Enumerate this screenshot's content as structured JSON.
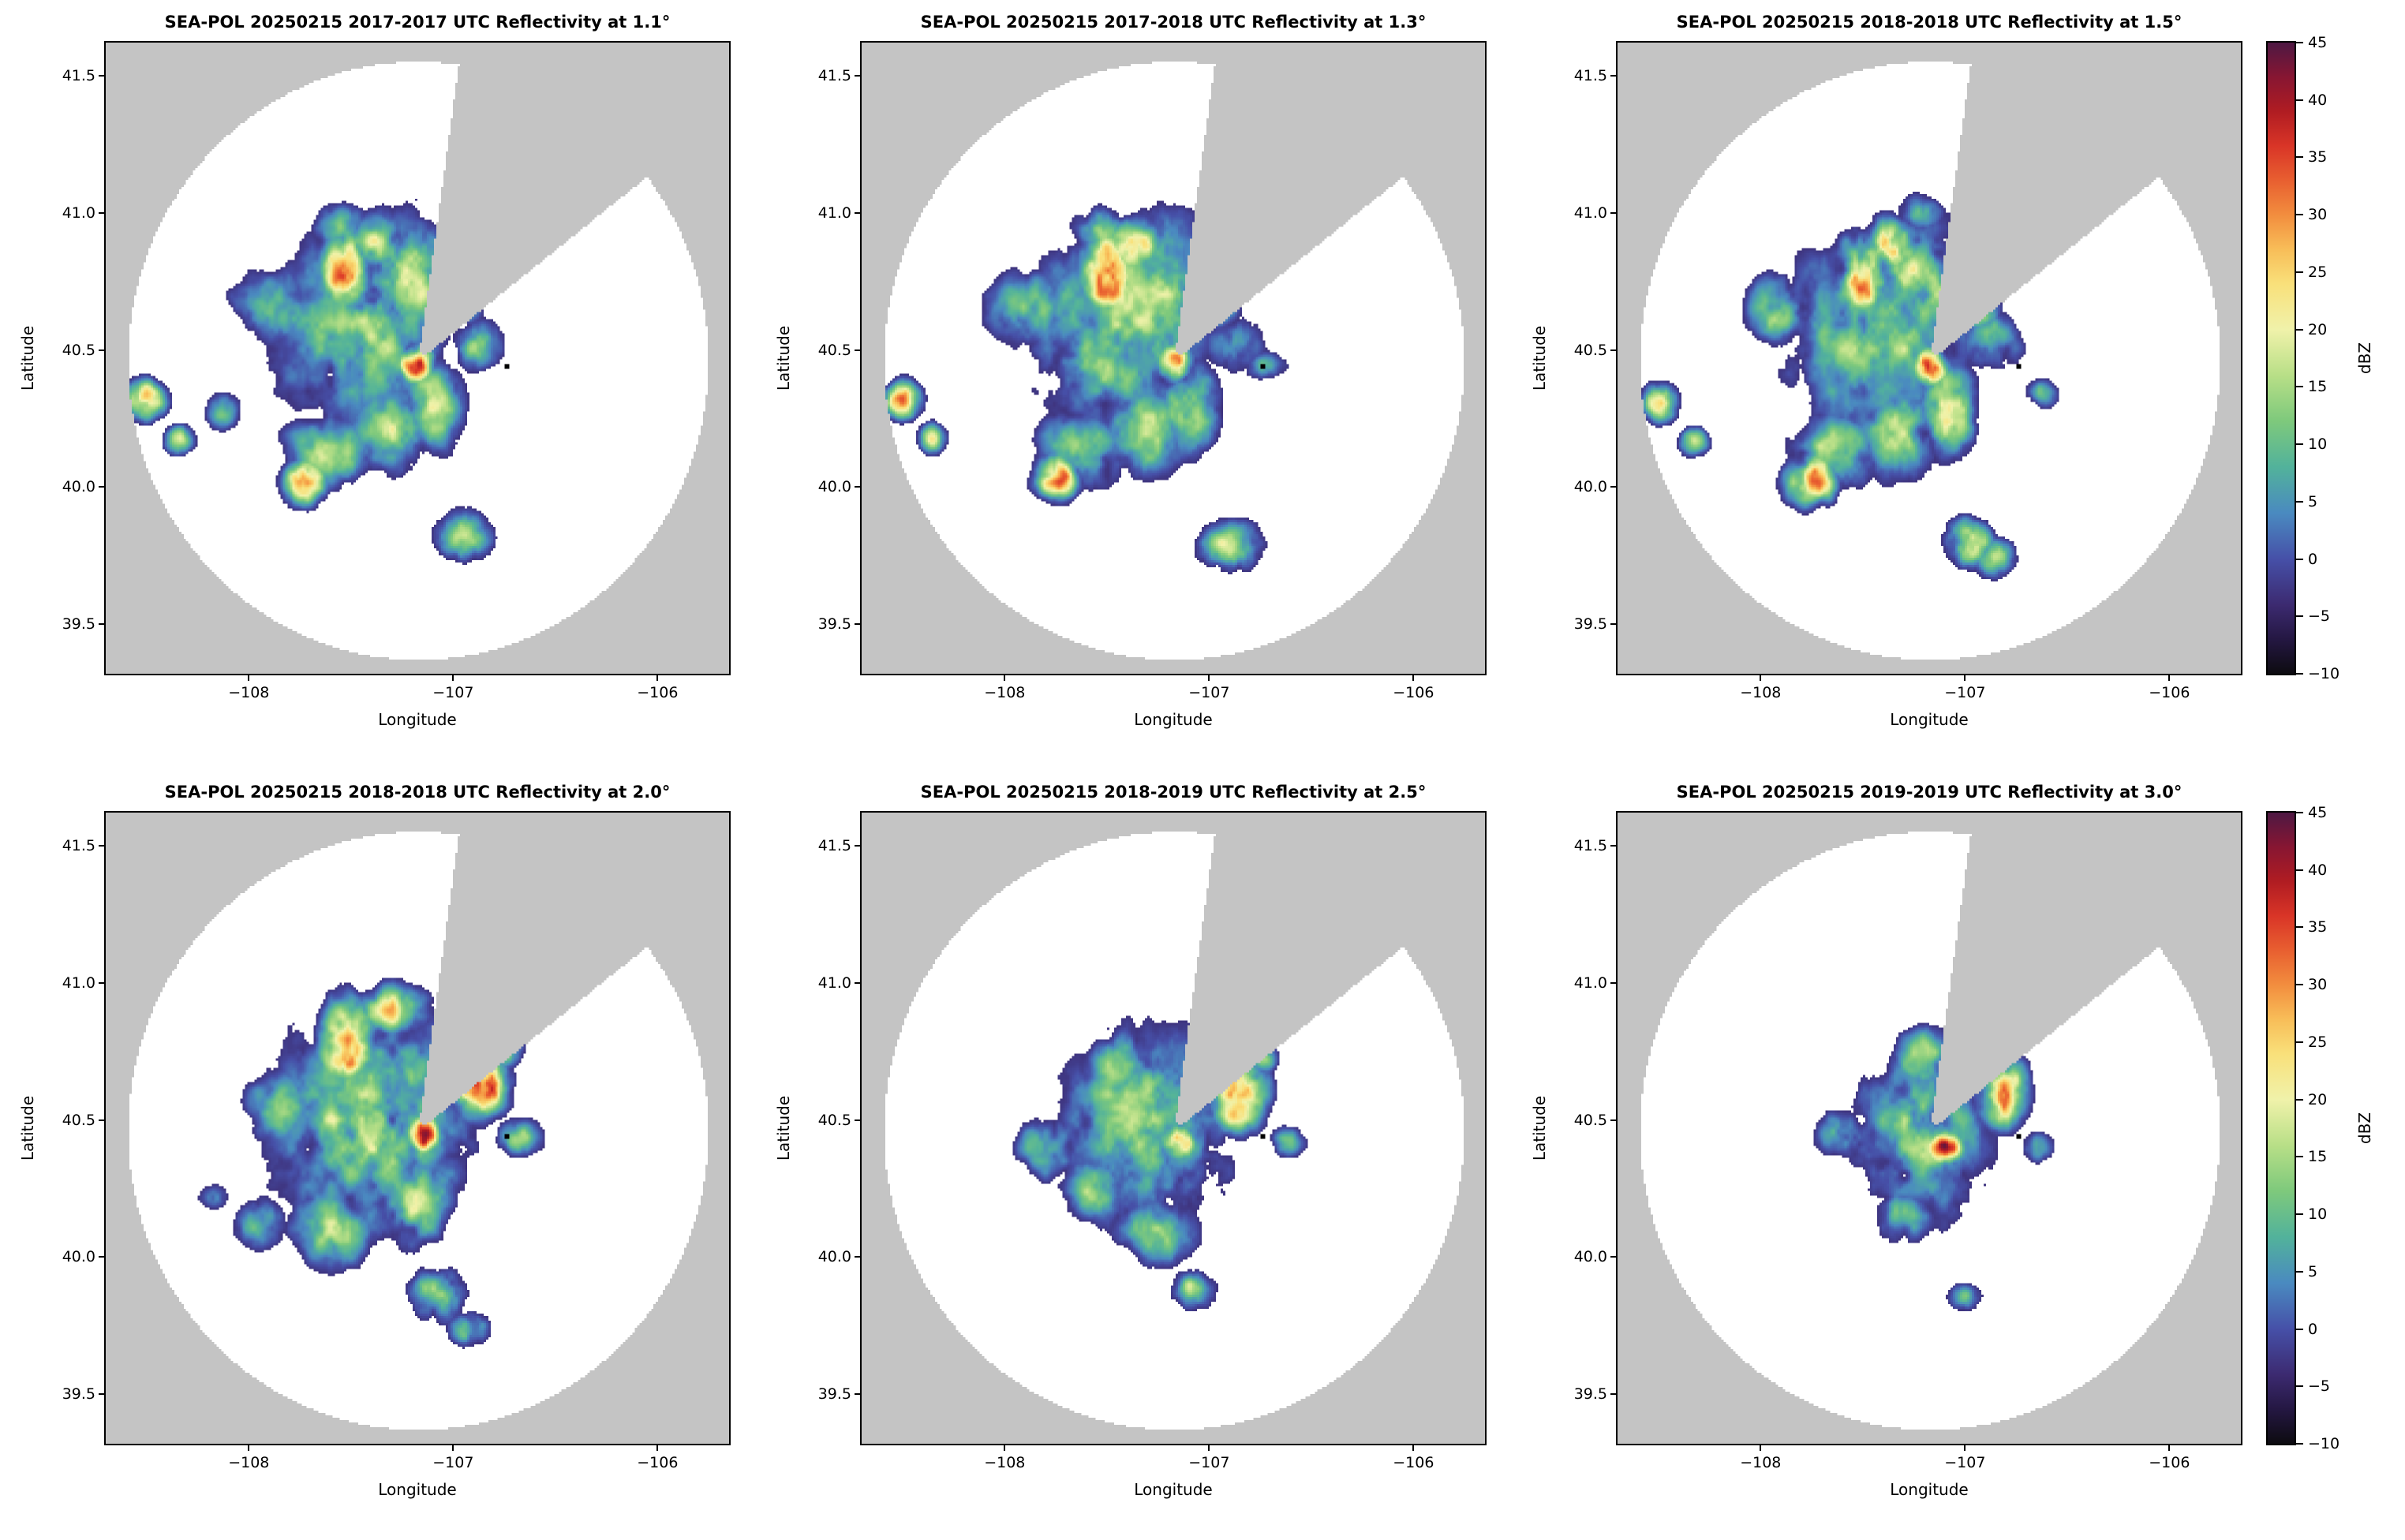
{
  "chart_data": {
    "type": "heatmap",
    "figure_kind": "radar-ppi-reflectivity-grid",
    "rows": 2,
    "cols": 3,
    "panels": [
      {
        "title": "SEA-POL 20250215 2017-2017 UTC Reflectivity at 1.1°",
        "elevation_deg": 1.1,
        "time_utc": "2017-2017",
        "seed": 11,
        "echo_features": [
          [
            -107.45,
            40.58,
            0.3,
            0.25,
            15
          ],
          [
            -107.25,
            40.75,
            0.22,
            0.18,
            15
          ],
          [
            -107.52,
            40.78,
            0.09,
            0.11,
            33
          ],
          [
            -107.38,
            40.88,
            0.1,
            0.07,
            26
          ],
          [
            -107.18,
            40.45,
            0.06,
            0.05,
            37
          ],
          [
            -107.1,
            40.3,
            0.1,
            0.12,
            19
          ],
          [
            -107.3,
            40.22,
            0.14,
            0.12,
            15
          ],
          [
            -107.73,
            40.02,
            0.08,
            0.06,
            31
          ],
          [
            -107.62,
            40.12,
            0.16,
            0.1,
            14
          ],
          [
            -107.88,
            40.66,
            0.14,
            0.1,
            13
          ],
          [
            -108.5,
            40.32,
            0.07,
            0.05,
            29
          ],
          [
            -108.34,
            40.17,
            0.05,
            0.04,
            21
          ],
          [
            -108.12,
            40.28,
            0.06,
            0.05,
            11
          ],
          [
            -106.88,
            40.52,
            0.1,
            0.07,
            11
          ],
          [
            -106.95,
            40.65,
            0.07,
            0.05,
            13
          ],
          [
            -106.95,
            39.82,
            0.1,
            0.07,
            15
          ],
          [
            -107.55,
            40.95,
            0.09,
            0.06,
            15
          ]
        ]
      },
      {
        "title": "SEA-POL 20250215 2017-2018 UTC Reflectivity at 1.3°",
        "elevation_deg": 1.3,
        "time_utc": "2017-2018",
        "seed": 13,
        "echo_features": [
          [
            -107.45,
            40.57,
            0.3,
            0.25,
            15
          ],
          [
            -107.24,
            40.74,
            0.22,
            0.18,
            15
          ],
          [
            -107.51,
            40.77,
            0.09,
            0.11,
            33
          ],
          [
            -107.36,
            40.88,
            0.1,
            0.07,
            25
          ],
          [
            -107.17,
            40.45,
            0.06,
            0.05,
            38
          ],
          [
            -107.09,
            40.29,
            0.1,
            0.12,
            19
          ],
          [
            -107.31,
            40.21,
            0.14,
            0.12,
            15
          ],
          [
            -107.74,
            40.04,
            0.08,
            0.06,
            31
          ],
          [
            -107.63,
            40.13,
            0.16,
            0.1,
            14
          ],
          [
            -107.89,
            40.65,
            0.14,
            0.1,
            13
          ],
          [
            -108.5,
            40.32,
            0.07,
            0.05,
            27
          ],
          [
            -108.35,
            40.18,
            0.05,
            0.04,
            20
          ],
          [
            -106.87,
            40.52,
            0.1,
            0.07,
            12
          ],
          [
            -106.94,
            40.64,
            0.07,
            0.05,
            13
          ],
          [
            -106.9,
            39.78,
            0.11,
            0.07,
            16
          ],
          [
            -107.54,
            40.94,
            0.09,
            0.06,
            15
          ],
          [
            -106.72,
            40.44,
            0.08,
            0.04,
            10
          ]
        ]
      },
      {
        "title": "SEA-POL 20250215 2018-2018 UTC Reflectivity at 1.5°",
        "elevation_deg": 1.5,
        "time_utc": "2018-2018",
        "seed": 15,
        "echo_features": [
          [
            -107.44,
            40.56,
            0.31,
            0.26,
            15
          ],
          [
            -107.23,
            40.73,
            0.22,
            0.18,
            15
          ],
          [
            -107.5,
            40.77,
            0.09,
            0.11,
            34
          ],
          [
            -107.35,
            40.88,
            0.1,
            0.07,
            25
          ],
          [
            -107.17,
            40.44,
            0.06,
            0.05,
            38
          ],
          [
            -107.08,
            40.28,
            0.1,
            0.12,
            20
          ],
          [
            -107.32,
            40.2,
            0.14,
            0.12,
            15
          ],
          [
            -107.75,
            40.03,
            0.09,
            0.07,
            32
          ],
          [
            -107.64,
            40.13,
            0.16,
            0.1,
            14
          ],
          [
            -107.9,
            40.64,
            0.13,
            0.1,
            13
          ],
          [
            -108.49,
            40.31,
            0.06,
            0.05,
            26
          ],
          [
            -108.32,
            40.16,
            0.05,
            0.04,
            18
          ],
          [
            -106.86,
            40.53,
            0.1,
            0.07,
            13
          ],
          [
            -106.93,
            40.64,
            0.07,
            0.05,
            14
          ],
          [
            -106.98,
            39.8,
            0.08,
            0.06,
            24
          ],
          [
            -106.85,
            39.74,
            0.08,
            0.05,
            14
          ],
          [
            -107.22,
            41.0,
            0.08,
            0.05,
            13
          ],
          [
            -106.62,
            40.34,
            0.06,
            0.04,
            11
          ]
        ]
      },
      {
        "title": "SEA-POL 20250215 2018-2018 UTC Reflectivity at 2.0°",
        "elevation_deg": 2.0,
        "time_utc": "2018-2018",
        "seed": 20,
        "echo_features": [
          [
            -107.4,
            40.5,
            0.34,
            0.28,
            16
          ],
          [
            -107.52,
            40.78,
            0.1,
            0.11,
            32
          ],
          [
            -107.3,
            40.9,
            0.12,
            0.07,
            19
          ],
          [
            -107.15,
            40.45,
            0.06,
            0.05,
            38
          ],
          [
            -106.87,
            40.63,
            0.1,
            0.09,
            33
          ],
          [
            -106.74,
            40.76,
            0.06,
            0.05,
            24
          ],
          [
            -107.2,
            40.22,
            0.14,
            0.12,
            17
          ],
          [
            -107.6,
            40.1,
            0.14,
            0.1,
            15
          ],
          [
            -107.95,
            40.12,
            0.09,
            0.07,
            12
          ],
          [
            -108.18,
            40.22,
            0.06,
            0.04,
            10
          ],
          [
            -107.08,
            39.86,
            0.11,
            0.07,
            15
          ],
          [
            -106.92,
            39.74,
            0.07,
            0.05,
            13
          ],
          [
            -106.68,
            40.44,
            0.09,
            0.05,
            11
          ],
          [
            -107.85,
            40.55,
            0.12,
            0.1,
            12
          ]
        ]
      },
      {
        "title": "SEA-POL 20250215 2018-2019 UTC Reflectivity at 2.5°",
        "elevation_deg": 2.5,
        "time_utc": "2018-2019",
        "seed": 25,
        "echo_features": [
          [
            -107.3,
            40.48,
            0.28,
            0.24,
            16
          ],
          [
            -107.16,
            40.42,
            0.07,
            0.05,
            35
          ],
          [
            -106.86,
            40.6,
            0.1,
            0.1,
            33
          ],
          [
            -106.75,
            40.74,
            0.06,
            0.05,
            22
          ],
          [
            -107.45,
            40.7,
            0.1,
            0.09,
            18
          ],
          [
            -107.25,
            40.1,
            0.14,
            0.09,
            14
          ],
          [
            -107.08,
            39.88,
            0.08,
            0.05,
            14
          ],
          [
            -107.8,
            40.4,
            0.1,
            0.08,
            12
          ],
          [
            -106.62,
            40.42,
            0.07,
            0.04,
            11
          ],
          [
            -107.55,
            40.25,
            0.12,
            0.09,
            13
          ]
        ]
      },
      {
        "title": "SEA-POL 20250215 2019-2019 UTC Reflectivity at 3.0°",
        "elevation_deg": 3.0,
        "time_utc": "2019-2019",
        "seed": 30,
        "echo_features": [
          [
            -107.22,
            40.45,
            0.24,
            0.21,
            15
          ],
          [
            -107.1,
            40.4,
            0.07,
            0.05,
            33
          ],
          [
            -106.82,
            40.6,
            0.09,
            0.09,
            32
          ],
          [
            -107.2,
            40.72,
            0.1,
            0.08,
            16
          ],
          [
            -107.3,
            40.15,
            0.11,
            0.07,
            12
          ],
          [
            -107.0,
            39.85,
            0.06,
            0.04,
            11
          ],
          [
            -107.6,
            40.45,
            0.09,
            0.07,
            11
          ],
          [
            -106.65,
            40.4,
            0.06,
            0.04,
            10
          ]
        ]
      }
    ],
    "axes": {
      "xlabel": "Longitude",
      "ylabel": "Latitude",
      "xlim": [
        -108.7,
        -105.65
      ],
      "ylim": [
        39.32,
        41.62
      ],
      "xticks": [
        -108,
        -107,
        -106
      ],
      "xticklabels": [
        "−108",
        "−107",
        "−106"
      ],
      "yticks": [
        39.5,
        40.0,
        40.5,
        41.0,
        41.5
      ],
      "yticklabels": [
        "39.5",
        "40.0",
        "40.5",
        "41.0",
        "41.5"
      ]
    },
    "colorbar": {
      "label": "dBZ",
      "min": -10,
      "max": 45,
      "ticks": [
        -10,
        -5,
        0,
        5,
        10,
        15,
        20,
        25,
        30,
        35,
        40,
        45
      ],
      "ticklabels": [
        "−10",
        "−5",
        "0",
        "5",
        "10",
        "15",
        "20",
        "25",
        "30",
        "35",
        "40",
        "45"
      ]
    },
    "colormap_stops": [
      [
        -10,
        "#0d0b10"
      ],
      [
        -7,
        "#241742"
      ],
      [
        -4,
        "#3c2a70"
      ],
      [
        0,
        "#4650a8"
      ],
      [
        4,
        "#4a8ac0"
      ],
      [
        8,
        "#52b29b"
      ],
      [
        12,
        "#7ec97c"
      ],
      [
        16,
        "#b8df87"
      ],
      [
        20,
        "#f0f2aa"
      ],
      [
        24,
        "#f9e07a"
      ],
      [
        27,
        "#f8bd58"
      ],
      [
        30,
        "#f28d3e"
      ],
      [
        33,
        "#e85f30"
      ],
      [
        36,
        "#d93527"
      ],
      [
        39,
        "#b01c22"
      ],
      [
        42,
        "#871632"
      ],
      [
        45,
        "#4e1843"
      ]
    ],
    "radar": {
      "center_lon": -107.17,
      "center_lat": 40.46,
      "range_deg_lon": 1.42,
      "range_deg_lat": 1.09,
      "blocked_sector_az_deg": [
        8,
        52
      ]
    },
    "site_marker": {
      "lon": -106.74,
      "lat": 40.44,
      "color": "#000000"
    },
    "colors": {
      "outside_scan": "#c4c4c4",
      "no_echo": "#ffffff",
      "page_background": "#ffffff",
      "axis": "#000000"
    }
  }
}
